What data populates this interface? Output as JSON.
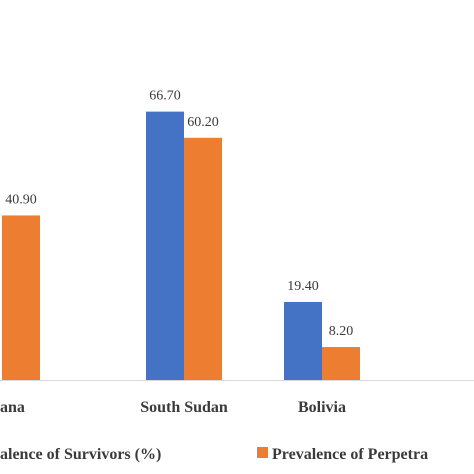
{
  "chart_data": {
    "type": "bar",
    "categories": [
      "Ghana",
      "South Sudan",
      "Bolivia"
    ],
    "visible_category_labels": [
      "ana",
      "South Sudan",
      "Bolivia"
    ],
    "series": [
      {
        "name": "Prevalence of Survivors (%)",
        "visible_legend_text": "alence of Survivors (%)",
        "color": "#4472C4",
        "values": [
          null,
          66.7,
          19.4
        ],
        "labels": [
          "",
          "66.70",
          "19.40"
        ]
      },
      {
        "name": "Prevalence of Perpetrators (%)",
        "visible_legend_text": "Prevalence of Perpetra",
        "color": "#ED7D31",
        "values": [
          40.9,
          60.2,
          8.2
        ],
        "labels": [
          "40.90",
          "60.20",
          "8.20"
        ]
      }
    ],
    "ylim": [
      0,
      85
    ],
    "grid": false,
    "legend_position": "bottom",
    "axis_color": "#d9d9d9"
  }
}
